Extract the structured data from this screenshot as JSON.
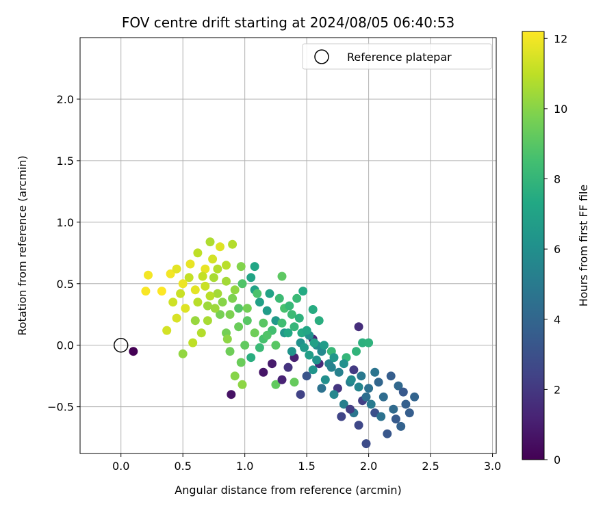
{
  "chart_data": {
    "type": "scatter",
    "title": "FOV centre drift starting at 2024/08/05 06:40:53",
    "xlabel": "Angular distance from reference (arcmin)",
    "ylabel": "Rotation from reference (arcmin)",
    "xlim": [
      -0.33,
      3.03
    ],
    "ylim": [
      -0.88,
      2.5
    ],
    "xticks": [
      0.0,
      0.5,
      1.0,
      1.5,
      2.0,
      2.5,
      3.0
    ],
    "xtick_labels": [
      "0.0",
      "0.5",
      "1.0",
      "1.5",
      "2.0",
      "2.5",
      "3.0"
    ],
    "yticks": [
      -0.5,
      0.0,
      0.5,
      1.0,
      1.5,
      2.0
    ],
    "ytick_labels": [
      "−0.5",
      "0.0",
      "0.5",
      "1.0",
      "1.5",
      "2.0"
    ],
    "grid": true,
    "legend": {
      "placement": "top-right",
      "entries": [
        "Reference platepar"
      ]
    },
    "reference_point": {
      "x": 0.0,
      "y": 0.0,
      "label": "Reference platepar"
    },
    "colorbar": {
      "label": "Hours from first FF file",
      "colormap": "viridis",
      "range": [
        0,
        12.2
      ],
      "ticks": [
        0,
        2,
        4,
        6,
        8,
        10,
        12
      ],
      "tick_labels": [
        "0",
        "2",
        "4",
        "6",
        "8",
        "10",
        "12"
      ]
    },
    "points": [
      [
        0.1,
        -0.05,
        0.0
      ],
      [
        0.89,
        -0.4,
        0.6
      ],
      [
        1.15,
        -0.22,
        0.7
      ],
      [
        1.4,
        -0.1,
        1.1
      ],
      [
        1.55,
        0.05,
        1.3
      ],
      [
        1.6,
        -0.15,
        1.5
      ],
      [
        1.92,
        0.15,
        1.6
      ],
      [
        1.75,
        -0.35,
        1.9
      ],
      [
        1.88,
        -0.2,
        2.1
      ],
      [
        1.95,
        -0.45,
        2.3
      ],
      [
        1.92,
        -0.65,
        2.6
      ],
      [
        1.98,
        -0.8,
        2.8
      ],
      [
        2.05,
        -0.55,
        3.0
      ],
      [
        2.15,
        -0.72,
        3.3
      ],
      [
        2.22,
        -0.6,
        3.5
      ],
      [
        2.3,
        -0.48,
        3.7
      ],
      [
        2.37,
        -0.42,
        3.9
      ],
      [
        2.24,
        -0.33,
        4.1
      ],
      [
        2.12,
        -0.42,
        4.3
      ],
      [
        2.0,
        -0.35,
        4.5
      ],
      [
        2.05,
        -0.22,
        4.7
      ],
      [
        1.94,
        -0.25,
        4.9
      ],
      [
        1.85,
        -0.3,
        5.1
      ],
      [
        1.76,
        -0.22,
        5.3
      ],
      [
        1.68,
        -0.15,
        5.5
      ],
      [
        1.62,
        -0.05,
        5.7
      ],
      [
        1.58,
        0.0,
        5.8
      ],
      [
        1.52,
        0.08,
        6.0
      ],
      [
        1.45,
        0.02,
        6.1
      ],
      [
        1.38,
        -0.05,
        6.2
      ],
      [
        1.32,
        0.1,
        6.4
      ],
      [
        1.25,
        0.2,
        6.5
      ],
      [
        1.18,
        0.28,
        6.7
      ],
      [
        1.12,
        0.35,
        6.9
      ],
      [
        1.08,
        0.45,
        7.0
      ],
      [
        1.05,
        0.55,
        7.1
      ],
      [
        1.08,
        0.64,
        7.2
      ],
      [
        1.47,
        0.44,
        7.4
      ],
      [
        1.55,
        0.29,
        7.5
      ],
      [
        1.6,
        0.2,
        7.6
      ],
      [
        1.95,
        0.02,
        7.7
      ],
      [
        2.0,
        0.02,
        7.8
      ],
      [
        1.9,
        -0.05,
        7.9
      ],
      [
        1.82,
        -0.1,
        8.0
      ],
      [
        1.7,
        -0.05,
        8.1
      ],
      [
        1.42,
        0.38,
        8.2
      ],
      [
        1.38,
        0.25,
        8.3
      ],
      [
        1.3,
        0.18,
        8.4
      ],
      [
        1.22,
        0.12,
        8.5
      ],
      [
        1.15,
        0.05,
        8.6
      ],
      [
        1.1,
        0.42,
        8.7
      ],
      [
        0.98,
        0.5,
        8.8
      ],
      [
        0.95,
        0.3,
        8.9
      ],
      [
        1.02,
        0.2,
        9.0
      ],
      [
        1.3,
        0.56,
        9.1
      ],
      [
        1.25,
        -0.32,
        9.2
      ],
      [
        1.4,
        -0.3,
        9.3
      ],
      [
        0.97,
        -0.14,
        9.4
      ],
      [
        0.88,
        -0.05,
        9.5
      ],
      [
        0.85,
        0.1,
        9.6
      ],
      [
        0.8,
        0.25,
        9.7
      ],
      [
        0.9,
        0.38,
        9.8
      ],
      [
        0.97,
        0.64,
        9.9
      ],
      [
        0.92,
        -0.25,
        10.0
      ],
      [
        0.98,
        -0.32,
        10.1
      ],
      [
        0.5,
        -0.07,
        10.2
      ],
      [
        0.6,
        0.2,
        10.3
      ],
      [
        0.7,
        0.32,
        10.4
      ],
      [
        0.78,
        0.42,
        10.5
      ],
      [
        0.75,
        0.55,
        10.6
      ],
      [
        0.72,
        0.84,
        10.7
      ],
      [
        0.9,
        0.82,
        10.8
      ],
      [
        0.85,
        0.65,
        10.9
      ],
      [
        0.62,
        0.75,
        11.0
      ],
      [
        0.55,
        0.55,
        11.1
      ],
      [
        0.48,
        0.42,
        11.2
      ],
      [
        0.42,
        0.35,
        11.3
      ],
      [
        0.37,
        0.12,
        11.4
      ],
      [
        0.45,
        0.22,
        11.5
      ],
      [
        0.52,
        0.3,
        11.6
      ],
      [
        0.6,
        0.45,
        11.7
      ],
      [
        0.68,
        0.62,
        11.8
      ],
      [
        0.22,
        0.57,
        12.0
      ],
      [
        0.2,
        0.44,
        12.1
      ],
      [
        0.33,
        0.44,
        12.2
      ],
      [
        1.2,
        0.42,
        7.0
      ],
      [
        1.35,
        0.1,
        7.3
      ],
      [
        1.48,
        -0.02,
        6.6
      ],
      [
        1.55,
        -0.2,
        6.3
      ],
      [
        1.65,
        -0.28,
        6.0
      ],
      [
        1.72,
        -0.4,
        5.6
      ],
      [
        1.8,
        -0.48,
        5.2
      ],
      [
        1.88,
        -0.55,
        4.8
      ],
      [
        1.98,
        -0.42,
        4.4
      ],
      [
        2.08,
        -0.3,
        4.0
      ],
      [
        2.18,
        -0.25,
        3.6
      ],
      [
        2.28,
        -0.38,
        3.4
      ],
      [
        1.78,
        -0.58,
        2.5
      ],
      [
        1.85,
        -0.52,
        2.2
      ],
      [
        1.7,
        -0.18,
        5.4
      ],
      [
        1.62,
        -0.35,
        4.6
      ],
      [
        1.5,
        -0.25,
        3.2
      ],
      [
        1.45,
        -0.4,
        2.4
      ],
      [
        1.35,
        -0.18,
        1.8
      ],
      [
        1.3,
        -0.28,
        1.2
      ],
      [
        1.22,
        -0.15,
        0.9
      ],
      [
        1.05,
        -0.1,
        7.6
      ],
      [
        1.12,
        -0.02,
        8.2
      ],
      [
        1.18,
        0.08,
        8.8
      ],
      [
        1.25,
        0.0,
        9.0
      ],
      [
        1.32,
        0.3,
        8.6
      ],
      [
        1.4,
        0.15,
        8.0
      ],
      [
        1.46,
        0.1,
        7.4
      ],
      [
        1.52,
        -0.08,
        6.8
      ],
      [
        1.58,
        -0.12,
        6.2
      ],
      [
        0.95,
        0.15,
        9.4
      ],
      [
        0.88,
        0.25,
        9.8
      ],
      [
        0.82,
        0.35,
        10.0
      ],
      [
        0.76,
        0.3,
        10.4
      ],
      [
        0.7,
        0.2,
        10.6
      ],
      [
        0.65,
        0.1,
        10.8
      ],
      [
        0.58,
        0.02,
        11.0
      ],
      [
        0.62,
        0.35,
        10.9
      ],
      [
        0.68,
        0.48,
        11.2
      ],
      [
        0.74,
        0.7,
        11.4
      ],
      [
        0.8,
        0.8,
        11.6
      ],
      [
        0.56,
        0.66,
        11.8
      ],
      [
        0.5,
        0.5,
        11.9
      ],
      [
        0.4,
        0.58,
        12.0
      ],
      [
        0.45,
        0.62,
        11.7
      ],
      [
        1.0,
        0.0,
        9.2
      ],
      [
        1.08,
        0.1,
        9.5
      ],
      [
        1.15,
        0.18,
        9.0
      ],
      [
        1.02,
        0.3,
        9.6
      ],
      [
        0.92,
        0.45,
        10.2
      ],
      [
        0.85,
        0.52,
        10.5
      ],
      [
        0.78,
        0.62,
        10.8
      ],
      [
        0.66,
        0.56,
        11.1
      ],
      [
        0.72,
        0.4,
        10.9
      ],
      [
        0.86,
        0.05,
        10.1
      ],
      [
        1.28,
        0.38,
        8.3
      ],
      [
        1.36,
        0.32,
        8.1
      ],
      [
        1.44,
        0.22,
        7.8
      ],
      [
        1.5,
        0.12,
        7.2
      ],
      [
        1.56,
        0.02,
        6.9
      ],
      [
        1.64,
        0.0,
        6.7
      ],
      [
        1.72,
        -0.1,
        6.4
      ],
      [
        1.8,
        -0.15,
        6.1
      ],
      [
        1.86,
        -0.28,
        5.8
      ],
      [
        1.92,
        -0.34,
        5.5
      ],
      [
        2.02,
        -0.48,
        5.0
      ],
      [
        2.1,
        -0.58,
        4.6
      ],
      [
        2.2,
        -0.52,
        4.2
      ],
      [
        2.26,
        -0.66,
        3.8
      ],
      [
        2.33,
        -0.55,
        3.6
      ]
    ]
  }
}
